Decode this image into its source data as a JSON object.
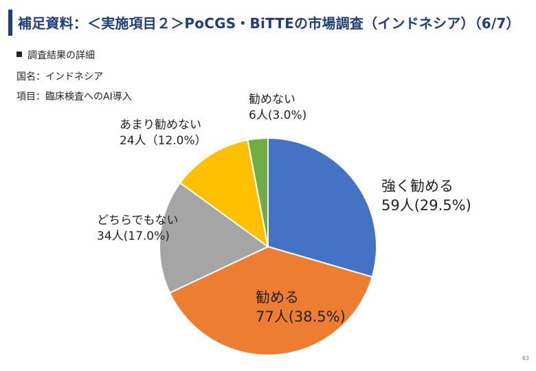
{
  "slide": {
    "title": "補足資料：＜実施項目２＞PoCGS・BiTTEの市場調査（インドネシア）（6/7）",
    "bullet": "調査結果の詳細",
    "country_line": "国名：インドネシア",
    "item_line": "項目：臨床検査へのAI導入",
    "page_number": "63",
    "accent_color": "#1f3e7a"
  },
  "chart_data": {
    "type": "pie",
    "title": "",
    "start_angle_deg": 90,
    "direction": "clockwise",
    "slices": [
      {
        "label": "強く勧める",
        "count_label": "59人(29.5%)",
        "count": 59,
        "percent": 29.5,
        "color": "#4472c4"
      },
      {
        "label": "勧める",
        "count_label": "77人(38.5%)",
        "count": 77,
        "percent": 38.5,
        "color": "#ed7d31"
      },
      {
        "label": "どちらでもない",
        "count_label": "34人(17.0%)",
        "count": 34,
        "percent": 17.0,
        "color": "#a5a5a5"
      },
      {
        "label": "あまり勧めない",
        "count_label": "24人（12.0%）",
        "count": 24,
        "percent": 12.0,
        "color": "#ffc000"
      },
      {
        "label": "勧めない",
        "count_label": "6人(3.0%)",
        "count": 6,
        "percent": 3.0,
        "color": "#70ad47"
      }
    ]
  }
}
